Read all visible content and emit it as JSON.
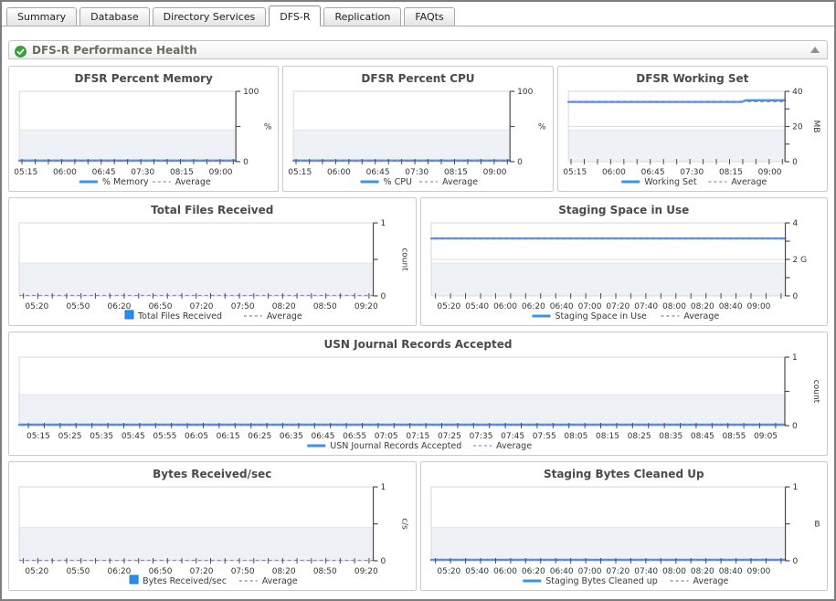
{
  "tabs": {
    "items": [
      {
        "label": "Summary",
        "active": false
      },
      {
        "label": "Database",
        "active": false
      },
      {
        "label": "Directory Services",
        "active": false
      },
      {
        "label": "DFS-R",
        "active": true
      },
      {
        "label": "Replication",
        "active": false
      },
      {
        "label": "FAQts",
        "active": false
      }
    ]
  },
  "section": {
    "title": "DFS-R Performance Health",
    "status": "normal",
    "status_icon": "green-check",
    "collapse_icon": "up-triangle"
  },
  "colors": {
    "series_line": "#3d94e6",
    "average_line": "#b07cc5",
    "bar_swatch": "#2b8ced",
    "bar_swatch_border": "#2277cc",
    "axis": "#4d4d4d",
    "tick_text": "#333333",
    "legend_text": "#3a3a3a",
    "shade": "#eef1f5",
    "shade_edge": "#e2e6ea",
    "grid": "#dcdfe2",
    "plot_border": "#d5d8da",
    "status_green": "#3aa33a"
  },
  "chart_data": [
    {
      "type": "line",
      "title": "DFSR Percent Memory",
      "ylabel": "%",
      "ylim": [
        0,
        100
      ],
      "yticks": [
        {
          "v": 0,
          "label": "0"
        },
        {
          "v": 50,
          "label": ""
        },
        {
          "v": 100,
          "label": "100"
        }
      ],
      "x_labels": [
        "05:15",
        "06:00",
        "06:45",
        "07:30",
        "08:15",
        "09:00"
      ],
      "x_minor_ticks": 17,
      "xf0": 0.03,
      "xf1": 0.93,
      "points": [
        [
          0,
          1.5
        ],
        [
          1,
          1.5
        ]
      ],
      "average": 1.5,
      "legend": {
        "series": "% Memory",
        "average": "Average"
      }
    },
    {
      "type": "line",
      "title": "DFSR Percent CPU",
      "ylabel": "%",
      "ylim": [
        0,
        100
      ],
      "yticks": [
        {
          "v": 0,
          "label": "0"
        },
        {
          "v": 50,
          "label": ""
        },
        {
          "v": 100,
          "label": "100"
        }
      ],
      "x_labels": [
        "05:15",
        "06:00",
        "06:45",
        "07:30",
        "08:15",
        "09:00"
      ],
      "x_minor_ticks": 17,
      "xf0": 0.03,
      "xf1": 0.93,
      "points": [
        [
          0,
          1.5
        ],
        [
          1,
          1.5
        ]
      ],
      "average": 1.5,
      "legend": {
        "series": "% CPU",
        "average": "Average"
      }
    },
    {
      "type": "line",
      "title": "DFSR Working Set",
      "ylabel": "MB",
      "ylim": [
        0,
        40
      ],
      "yticks": [
        {
          "v": 0,
          "label": "0"
        },
        {
          "v": 10,
          "label": ""
        },
        {
          "v": 20,
          "label": "20",
          "grid": true
        },
        {
          "v": 30,
          "label": ""
        },
        {
          "v": 40,
          "label": "40"
        }
      ],
      "x_labels": [
        "05:15",
        "06:00",
        "06:45",
        "07:30",
        "08:15",
        "09:00"
      ],
      "x_minor_ticks": 17,
      "xf0": 0.03,
      "xf1": 0.93,
      "points": [
        [
          0,
          34
        ],
        [
          0.8,
          34
        ],
        [
          0.82,
          34.9
        ],
        [
          1,
          34.9
        ]
      ],
      "average": 34.1,
      "legend": {
        "series": "Working Set",
        "average": "Average"
      }
    },
    {
      "type": "bar",
      "title": "Total Files Received",
      "ylabel": "count",
      "ylim": [
        0,
        1
      ],
      "yticks": [
        {
          "v": 0,
          "label": "0"
        },
        {
          "v": 0.5,
          "label": ""
        },
        {
          "v": 1,
          "label": "1"
        }
      ],
      "x_labels": [
        "05:20",
        "05:50",
        "06:20",
        "06:50",
        "07:20",
        "07:50",
        "08:20",
        "08:50",
        "09:20"
      ],
      "x_minor_ticks": 25,
      "xf0": 0.05,
      "xf1": 0.98,
      "points": [
        [
          0,
          0
        ],
        [
          1,
          0
        ]
      ],
      "average": 0,
      "legend": {
        "series": "Total Files Received",
        "average": "Average"
      }
    },
    {
      "type": "line",
      "title": "Staging Space in Use",
      "ylabel": "",
      "ylim": [
        0,
        4
      ],
      "yticks": [
        {
          "v": 0,
          "label": "0"
        },
        {
          "v": 1,
          "label": ""
        },
        {
          "v": 2,
          "label": "2 G",
          "grid": true
        },
        {
          "v": 3,
          "label": ""
        },
        {
          "v": 4,
          "label": "4"
        }
      ],
      "x_labels": [
        "05:20",
        "05:40",
        "06:00",
        "06:20",
        "06:40",
        "07:00",
        "07:20",
        "07:40",
        "08:00",
        "08:20",
        "08:40",
        "09:00"
      ],
      "x_minor_ticks": 24,
      "xf0": 0.05,
      "xf1": 0.925,
      "points": [
        [
          0,
          3.15
        ],
        [
          1,
          3.15
        ]
      ],
      "average": 3.15,
      "legend": {
        "series": "Staging Space in Use",
        "average": "Average"
      }
    },
    {
      "type": "line",
      "title": "USN Journal Records Accepted",
      "ylabel": "count",
      "ylim": [
        0,
        1
      ],
      "yticks": [
        {
          "v": 0,
          "label": "0"
        },
        {
          "v": 0.5,
          "label": ""
        },
        {
          "v": 1,
          "label": "1"
        }
      ],
      "x_labels": [
        "05:15",
        "05:25",
        "05:35",
        "05:45",
        "05:55",
        "06:05",
        "06:15",
        "06:25",
        "06:35",
        "06:45",
        "06:55",
        "07:05",
        "07:15",
        "07:25",
        "07:35",
        "07:45",
        "07:55",
        "08:05",
        "08:15",
        "08:25",
        "08:35",
        "08:45",
        "08:55",
        "09:05"
      ],
      "x_minor_ticks": 48,
      "xf0": 0.025,
      "xf1": 0.975,
      "points": [
        [
          0,
          0
        ],
        [
          1,
          0
        ]
      ],
      "average": 0,
      "legend": {
        "series": "USN Journal Records Accepted",
        "average": "Average"
      }
    },
    {
      "type": "bar",
      "title": "Bytes Received/sec",
      "ylabel": "c/s",
      "ylim": [
        0,
        1
      ],
      "yticks": [
        {
          "v": 0,
          "label": "0"
        },
        {
          "v": 0.5,
          "label": ""
        },
        {
          "v": 1,
          "label": "1"
        }
      ],
      "x_labels": [
        "05:20",
        "05:50",
        "06:20",
        "06:50",
        "07:20",
        "07:50",
        "08:20",
        "08:50",
        "09:20"
      ],
      "x_minor_ticks": 25,
      "xf0": 0.05,
      "xf1": 0.98,
      "points": [
        [
          0,
          0
        ],
        [
          1,
          0
        ]
      ],
      "average": 0,
      "legend": {
        "series": "Bytes Received/sec",
        "average": "Average"
      }
    },
    {
      "type": "line",
      "title": "Staging Bytes Cleaned Up",
      "ylabel": "B",
      "ylim": [
        0,
        1
      ],
      "yticks": [
        {
          "v": 0,
          "label": "0"
        },
        {
          "v": 0.5,
          "label": ""
        },
        {
          "v": 1,
          "label": "1"
        }
      ],
      "x_labels": [
        "05:20",
        "05:40",
        "06:00",
        "06:20",
        "06:40",
        "07:00",
        "07:20",
        "07:40",
        "08:00",
        "08:20",
        "08:40",
        "09:00"
      ],
      "x_minor_ticks": 24,
      "xf0": 0.05,
      "xf1": 0.925,
      "points": [
        [
          0,
          0
        ],
        [
          1,
          0
        ]
      ],
      "average": 0,
      "legend": {
        "series": "Staging Bytes Cleaned up",
        "average": "Average"
      }
    }
  ]
}
